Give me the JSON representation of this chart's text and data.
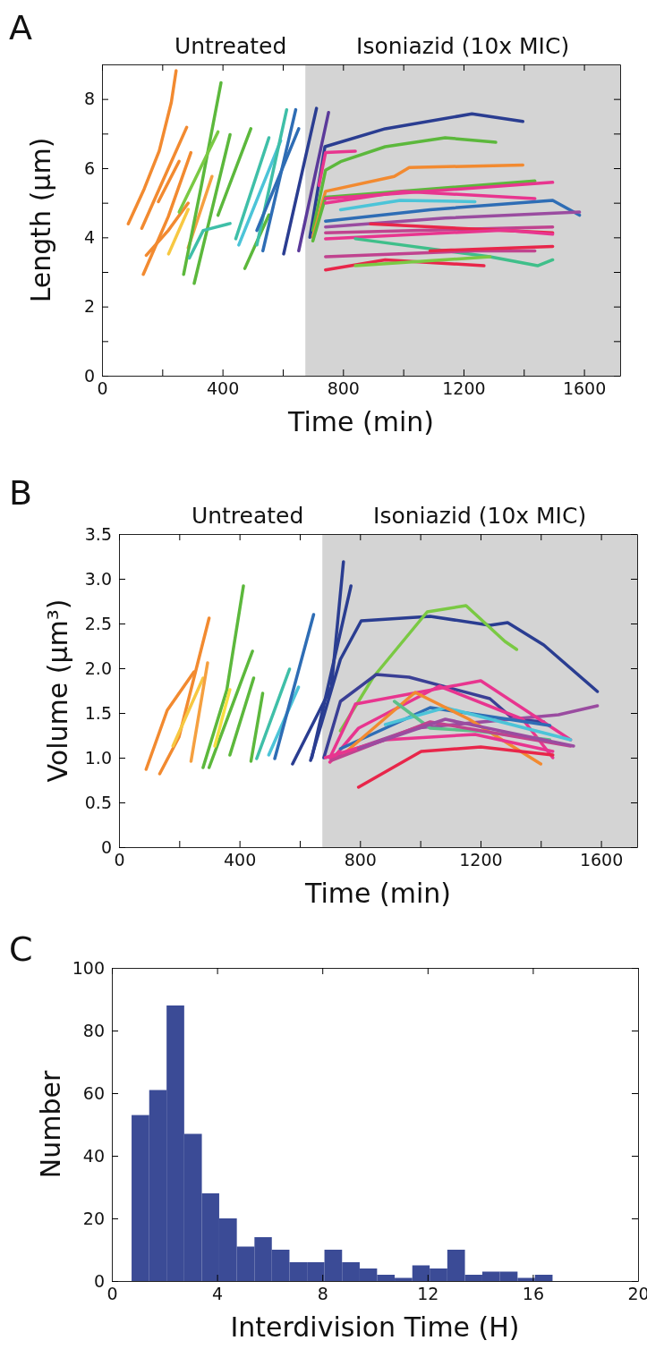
{
  "chart_data": [
    {
      "type": "line",
      "title": "A",
      "xlabel": "Time (min)",
      "ylabel": "Length (μm)",
      "xlim": [
        0,
        1720
      ],
      "ylim": [
        0,
        9
      ],
      "xticks": [
        0,
        {
          "value": 200,
          "label": null
        },
        400,
        {
          "value": 600,
          "label": null
        },
        800,
        {
          "value": 1000,
          "label": null
        },
        1200,
        {
          "value": 1400,
          "label": null
        },
        1600
      ],
      "yticks": [
        0,
        {
          "value": 1,
          "label": null
        },
        2,
        {
          "value": 3,
          "label": null
        },
        4,
        {
          "value": 5,
          "label": null
        },
        6,
        {
          "value": 7,
          "label": null
        },
        8
      ],
      "bands": [
        {
          "axis": "x",
          "from": 675,
          "to": 1720,
          "label": "Isoniazid (10x MIC)",
          "color": "#d4d4d4"
        }
      ],
      "annotations": [
        "Untreated"
      ],
      "series": [
        {
          "color": "#f28a30",
          "x": [
            87,
            140,
            190,
            230,
            246
          ],
          "values": [
            4.39,
            5.4,
            6.5,
            7.9,
            8.82
          ]
        },
        {
          "color": "#f28a30",
          "x": [
            132,
            200,
            281
          ],
          "values": [
            4.26,
            5.6,
            7.18
          ]
        },
        {
          "color": "#f28a30",
          "x": [
            137,
            220,
            295
          ],
          "values": [
            2.93,
            4.6,
            6.45
          ]
        },
        {
          "color": "#f28a30",
          "x": [
            147,
            220,
            286
          ],
          "values": [
            3.48,
            4.2,
            4.99
          ]
        },
        {
          "color": "#f28a30",
          "x": [
            187,
            256
          ],
          "values": [
            5.03,
            6.2
          ]
        },
        {
          "color": "#f7c842",
          "x": [
            221,
            286
          ],
          "values": [
            3.52,
            4.81
          ]
        },
        {
          "color": "#f5a040",
          "x": [
            286,
            365
          ],
          "values": [
            3.7,
            5.76
          ]
        },
        {
          "color": "#5cb83c",
          "x": [
            271,
            330,
            395
          ],
          "values": [
            2.93,
            5.5,
            8.47
          ]
        },
        {
          "color": "#5cb83c",
          "x": [
            306,
            425
          ],
          "values": [
            2.67,
            6.97
          ]
        },
        {
          "color": "#7ac943",
          "x": [
            256,
            385
          ],
          "values": [
            4.73,
            7.05
          ]
        },
        {
          "color": "#3fbfa8",
          "x": [
            290,
            336,
            425
          ],
          "values": [
            3.4,
            4.2,
            4.4
          ]
        },
        {
          "color": "#5cb83c",
          "x": [
            385,
            494
          ],
          "values": [
            4.64,
            7.14
          ]
        },
        {
          "color": "#5cb83c",
          "x": [
            474,
            554
          ],
          "values": [
            3.1,
            4.65
          ]
        },
        {
          "color": "#3fbfa8",
          "x": [
            444,
            554
          ],
          "values": [
            3.96,
            6.88
          ]
        },
        {
          "color": "#4cc4d8",
          "x": [
            454,
            593
          ],
          "values": [
            3.78,
            6.79
          ]
        },
        {
          "color": "#3fbfa8",
          "x": [
            514,
            613
          ],
          "values": [
            3.78,
            7.69
          ]
        },
        {
          "color": "#2e6db5",
          "x": [
            534,
            643
          ],
          "values": [
            3.61,
            7.69
          ]
        },
        {
          "color": "#2e6db5",
          "x": [
            514,
            653
          ],
          "values": [
            4.2,
            7.14
          ]
        },
        {
          "color": "#2a3d91",
          "x": [
            603,
            712
          ],
          "values": [
            3.52,
            7.73
          ]
        },
        {
          "color": "#5b3a9a",
          "x": [
            653,
            752
          ],
          "values": [
            3.61,
            7.61
          ]
        },
        {
          "color": "#2a3d91",
          "x": [
            690,
            740,
            940,
            1228,
            1397
          ],
          "values": [
            4.0,
            6.62,
            7.14,
            7.57,
            7.35
          ]
        },
        {
          "color": "#5cb83c",
          "x": [
            700,
            742,
            792,
            940,
            1139,
            1307
          ],
          "values": [
            4.2,
            5.94,
            6.19,
            6.62,
            6.88,
            6.75
          ]
        },
        {
          "color": "#f28a30",
          "x": [
            700,
            742,
            970,
            1020,
            1397
          ],
          "values": [
            4.0,
            5.33,
            5.76,
            6.02,
            6.09
          ]
        },
        {
          "color": "#5cb83c",
          "x": [
            700,
            742,
            1437
          ],
          "values": [
            3.9,
            5.16,
            5.63
          ]
        },
        {
          "color": "#e8358f",
          "x": [
            742,
            1496
          ],
          "values": [
            5.12,
            5.59
          ]
        },
        {
          "color": "#e8358f",
          "x": [
            742,
            1000,
            1437
          ],
          "values": [
            4.99,
            5.33,
            5.12
          ]
        },
        {
          "color": "#4cc4d8",
          "x": [
            792,
            990,
            1238
          ],
          "values": [
            4.8,
            5.07,
            5.03
          ]
        },
        {
          "color": "#2e6db5",
          "x": [
            742,
            1089,
            1496,
            1585
          ],
          "values": [
            4.47,
            4.8,
            5.07,
            4.64
          ]
        },
        {
          "color": "#9a4ca0",
          "x": [
            742,
            1139,
            1585
          ],
          "values": [
            4.3,
            4.56,
            4.73
          ]
        },
        {
          "color": "#c0438f",
          "x": [
            742,
            1496
          ],
          "values": [
            4.13,
            4.3
          ]
        },
        {
          "color": "#e8264a",
          "x": [
            891,
            1496
          ],
          "values": [
            4.39,
            4.13
          ]
        },
        {
          "color": "#e8358f",
          "x": [
            742,
            1337,
            1496
          ],
          "values": [
            3.96,
            4.21,
            4.09
          ]
        },
        {
          "color": "#3fbf8a",
          "x": [
            841,
            1288,
            1446,
            1496
          ],
          "values": [
            3.96,
            3.44,
            3.18,
            3.35
          ]
        },
        {
          "color": "#c0438f",
          "x": [
            742,
            1238,
            1437
          ],
          "values": [
            3.44,
            3.61,
            3.61
          ]
        },
        {
          "color": "#e8264a",
          "x": [
            742,
            940,
            1268
          ],
          "values": [
            3.06,
            3.35,
            3.18
          ]
        },
        {
          "color": "#7ac943",
          "x": [
            841,
            1288
          ],
          "values": [
            3.18,
            3.44
          ]
        },
        {
          "color": "#e8264a",
          "x": [
            1089,
            1496
          ],
          "values": [
            3.61,
            3.74
          ]
        },
        {
          "color": "#e8358f",
          "x": [
            720,
            742,
            841
          ],
          "values": [
            5.5,
            6.45,
            6.49
          ]
        }
      ]
    },
    {
      "type": "line",
      "title": "B",
      "xlabel": "Time (min)",
      "ylabel": "Volume (μm³)",
      "xlim": [
        0,
        1720
      ],
      "ylim": [
        0,
        3.5
      ],
      "xticks": [
        0,
        {
          "value": 200,
          "label": null
        },
        400,
        {
          "value": 600,
          "label": null
        },
        800,
        {
          "value": 1000,
          "label": null
        },
        1200,
        {
          "value": 1400,
          "label": null
        },
        1600
      ],
      "yticks": [
        0,
        {
          "value": 0.5,
          "label": "0.5"
        },
        {
          "value": 1,
          "label": "1.0"
        },
        {
          "value": 1.5,
          "label": "1.5"
        },
        {
          "value": 2,
          "label": "2.0"
        },
        {
          "value": 2.5,
          "label": "2.5"
        },
        {
          "value": 3,
          "label": "3.0"
        },
        {
          "value": 3.5,
          "label": "3.5"
        }
      ],
      "bands": [
        {
          "axis": "x",
          "from": 675,
          "to": 1720,
          "label": "Isoniazid (10x MIC)",
          "color": "#d4d4d4"
        }
      ],
      "annotations": [
        "Untreated"
      ],
      "series": [
        {
          "color": "#f28a30",
          "x": [
            90,
            160,
            249
          ],
          "values": [
            0.87,
            1.53,
            1.96
          ]
        },
        {
          "color": "#f28a30",
          "x": [
            135,
            199,
            299
          ],
          "values": [
            0.82,
            1.23,
            2.56
          ]
        },
        {
          "color": "#f7c842",
          "x": [
            179,
            279
          ],
          "values": [
            1.13,
            1.89
          ]
        },
        {
          "color": "#f5a040",
          "x": [
            239,
            294
          ],
          "values": [
            0.96,
            2.06
          ]
        },
        {
          "color": "#5cb83c",
          "x": [
            279,
            358,
            413
          ],
          "values": [
            0.89,
            1.76,
            2.92
          ]
        },
        {
          "color": "#5cb83c",
          "x": [
            299,
            443
          ],
          "values": [
            0.89,
            2.19
          ]
        },
        {
          "color": "#5cb83c",
          "x": [
            368,
            447
          ],
          "values": [
            1.03,
            1.89
          ]
        },
        {
          "color": "#f7e042",
          "x": [
            318,
            368
          ],
          "values": [
            1.13,
            1.76
          ]
        },
        {
          "color": "#5cb83c",
          "x": [
            438,
            477
          ],
          "values": [
            0.96,
            1.72
          ]
        },
        {
          "color": "#3fbfa8",
          "x": [
            457,
            566
          ],
          "values": [
            0.99,
            1.99
          ]
        },
        {
          "color": "#4cc4d8",
          "x": [
            497,
            596
          ],
          "values": [
            1.03,
            1.79
          ]
        },
        {
          "color": "#2e6db5",
          "x": [
            517,
            646
          ],
          "values": [
            0.99,
            2.6
          ]
        },
        {
          "color": "#2a3d91",
          "x": [
            576,
            705,
            745
          ],
          "values": [
            0.93,
            1.79,
            3.19
          ]
        },
        {
          "color": "#2a3d91",
          "x": [
            640,
            770
          ],
          "values": [
            1.0,
            2.92
          ]
        },
        {
          "color": "#2a3d91",
          "x": [
            636,
            735,
            804,
            1033,
            1231,
            1290,
            1410,
            1588
          ],
          "values": [
            0.97,
            2.1,
            2.53,
            2.58,
            2.48,
            2.51,
            2.26,
            1.74
          ]
        },
        {
          "color": "#7ac943",
          "x": [
            735,
            844,
            1023,
            1152,
            1281,
            1320
          ],
          "values": [
            1.3,
            1.9,
            2.63,
            2.7,
            2.3,
            2.21
          ]
        },
        {
          "color": "#3a3f95",
          "x": [
            680,
            735,
            854,
            963,
            1231,
            1310,
            1410
          ],
          "values": [
            1.0,
            1.63,
            1.93,
            1.9,
            1.66,
            1.43,
            1.4
          ]
        },
        {
          "color": "#9a4ca0",
          "x": [
            700,
            983,
            1459,
            1588
          ],
          "values": [
            1.0,
            1.33,
            1.48,
            1.58
          ]
        },
        {
          "color": "#e8358f",
          "x": [
            700,
            785,
            1201,
            1499
          ],
          "values": [
            1.0,
            1.6,
            1.86,
            1.2
          ]
        },
        {
          "color": "#e8358f",
          "x": [
            700,
            795,
            1063,
            1340,
            1440
          ],
          "values": [
            0.95,
            1.33,
            1.8,
            1.43,
            1.0
          ]
        },
        {
          "color": "#2e6db5",
          "x": [
            735,
            1033,
            1430
          ],
          "values": [
            1.1,
            1.56,
            1.36
          ]
        },
        {
          "color": "#4cc4d8",
          "x": [
            884,
            1083,
            1499
          ],
          "values": [
            1.37,
            1.56,
            1.2
          ]
        },
        {
          "color": "#f28a30",
          "x": [
            745,
            983,
            1162,
            1400
          ],
          "values": [
            1.04,
            1.73,
            1.43,
            0.93
          ]
        },
        {
          "color": "#5cc08a",
          "x": [
            914,
            1033,
            1182,
            1430
          ],
          "values": [
            1.63,
            1.33,
            1.3,
            1.2
          ]
        },
        {
          "color": "#c0438f",
          "x": [
            705,
            1033,
            1499
          ],
          "values": [
            0.97,
            1.4,
            1.13
          ]
        },
        {
          "color": "#e8264a",
          "x": [
            795,
            1003,
            1201,
            1440
          ],
          "values": [
            0.67,
            1.07,
            1.12,
            1.03
          ]
        },
        {
          "color": "#e8358f",
          "x": [
            685,
            884,
            1182,
            1440
          ],
          "values": [
            1.0,
            1.2,
            1.26,
            1.07
          ]
        },
        {
          "color": "#9a4ca0",
          "x": [
            795,
            1083,
            1509
          ],
          "values": [
            1.1,
            1.43,
            1.13
          ]
        }
      ]
    },
    {
      "type": "histogram",
      "title": "C",
      "xlabel": "Interdivision Time (H)",
      "ylabel": "Number",
      "xlim": [
        0,
        20
      ],
      "ylim": [
        0,
        100
      ],
      "xticks": [
        0,
        4,
        8,
        12,
        16,
        20
      ],
      "yticks": [
        0,
        20,
        40,
        60,
        80,
        100
      ],
      "color": "#3b4b96",
      "bins": [
        0.75,
        1.42,
        2.08,
        2.75,
        3.42,
        4.08,
        4.75,
        5.42,
        6.08,
        6.75,
        7.42,
        8.08,
        8.75,
        9.42,
        10.08,
        10.75,
        11.42,
        12.08,
        12.75,
        13.42,
        14.08,
        14.75,
        15.42,
        16.08,
        16.75
      ],
      "values": [
        53,
        61,
        88,
        47,
        28,
        20,
        11,
        14,
        10,
        6,
        6,
        10,
        6,
        4,
        2,
        1,
        5,
        4,
        10,
        2,
        3,
        3,
        1,
        2
      ]
    }
  ]
}
